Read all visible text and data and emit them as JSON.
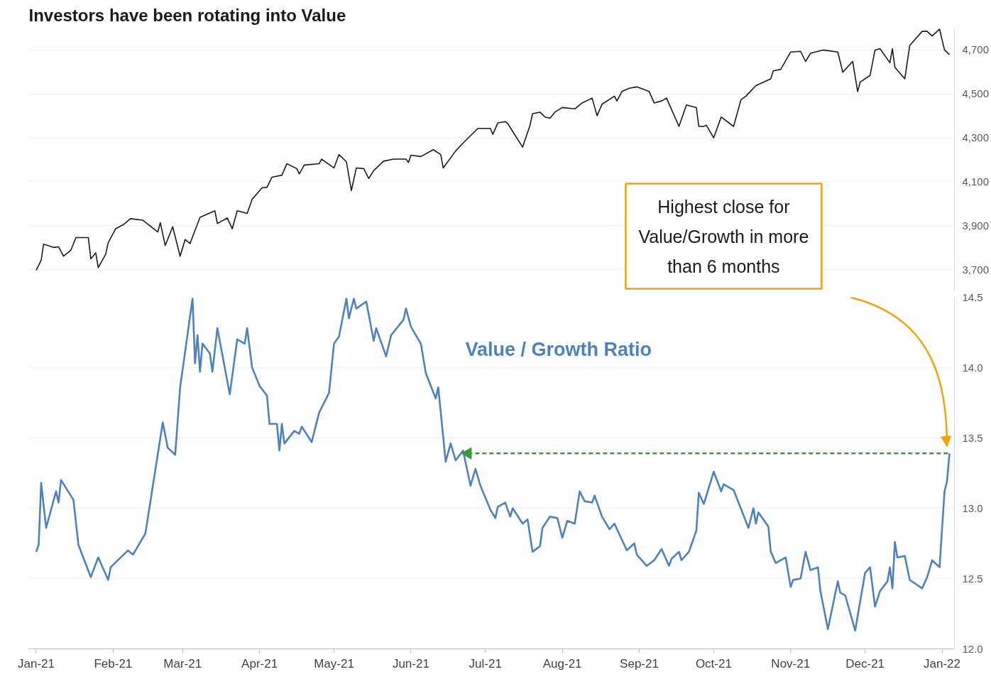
{
  "chart_data": [
    {
      "type": "line",
      "title": "Investors have been rotating into Value",
      "tick_labels": "y",
      "grid": "y",
      "xlim": [
        "2020-12-29",
        "2022-01-06"
      ],
      "ylim": [
        3600,
        4800
      ],
      "yticks": [
        {
          "value": 3700,
          "label": "3,700"
        },
        {
          "value": 3900,
          "label": "3,900"
        },
        {
          "value": 4100,
          "label": "4,100"
        },
        {
          "value": 4300,
          "label": "4,300"
        },
        {
          "value": 4500,
          "label": "4,500"
        },
        {
          "value": 4700,
          "label": "4,700"
        }
      ],
      "series": [
        {
          "color": "#1a1a1a",
          "x": [
            "2021-01-01",
            "2021-01-03",
            "2021-01-04",
            "2021-01-08",
            "2021-01-10",
            "2021-01-12",
            "2021-01-15",
            "2021-01-17",
            "2021-01-22",
            "2021-01-23",
            "2021-01-25",
            "2021-01-26",
            "2021-01-29",
            "2021-01-30",
            "2021-02-02",
            "2021-02-05",
            "2021-02-08",
            "2021-02-13",
            "2021-02-19",
            "2021-02-20",
            "2021-02-22",
            "2021-02-25",
            "2021-02-28",
            "2021-03-02",
            "2021-03-04",
            "2021-03-08",
            "2021-03-14",
            "2021-03-15",
            "2021-03-19",
            "2021-03-21",
            "2021-03-23",
            "2021-03-27",
            "2021-03-29",
            "2021-04-02",
            "2021-04-04",
            "2021-04-06",
            "2021-04-10",
            "2021-04-12",
            "2021-04-16",
            "2021-04-17",
            "2021-04-19",
            "2021-04-25",
            "2021-04-26",
            "2021-05-01",
            "2021-05-03",
            "2021-05-06",
            "2021-05-08",
            "2021-05-10",
            "2021-05-13",
            "2021-05-15",
            "2021-05-17",
            "2021-05-21",
            "2021-05-25",
            "2021-05-30",
            "2021-05-31",
            "2021-06-01",
            "2021-06-05",
            "2021-06-10",
            "2021-06-13",
            "2021-06-14",
            "2021-06-19",
            "2021-06-22",
            "2021-06-28",
            "2021-07-03",
            "2021-07-04",
            "2021-07-06",
            "2021-07-09",
            "2021-07-10",
            "2021-07-16",
            "2021-07-19",
            "2021-07-20",
            "2021-07-23",
            "2021-07-25",
            "2021-07-27",
            "2021-07-29",
            "2021-08-01",
            "2021-08-06",
            "2021-08-09",
            "2021-08-13",
            "2021-08-15",
            "2021-08-17",
            "2021-08-22",
            "2021-08-23",
            "2021-08-25",
            "2021-08-28",
            "2021-08-31",
            "2021-09-05",
            "2021-09-07",
            "2021-09-10",
            "2021-09-12",
            "2021-09-17",
            "2021-09-20",
            "2021-09-24",
            "2021-09-25",
            "2021-09-27",
            "2021-09-28",
            "2021-10-01",
            "2021-10-04",
            "2021-10-09",
            "2021-10-12",
            "2021-10-14",
            "2021-10-18",
            "2021-10-24",
            "2021-10-25",
            "2021-10-28",
            "2021-11-01",
            "2021-11-05",
            "2021-11-07",
            "2021-11-09",
            "2021-11-14",
            "2021-11-20",
            "2021-11-22",
            "2021-11-26",
            "2021-11-28",
            "2021-11-29",
            "2021-12-03",
            "2021-12-05",
            "2021-12-07",
            "2021-12-11",
            "2021-12-12",
            "2021-12-13",
            "2021-12-17",
            "2021-12-19",
            "2021-12-24",
            "2021-12-26",
            "2021-12-28",
            "2021-12-31",
            "2022-01-02",
            "2022-01-04"
          ],
          "values": [
            3697,
            3743,
            3816,
            3801,
            3804,
            3761,
            3789,
            3846,
            3846,
            3749,
            3776,
            3709,
            3770,
            3822,
            3886,
            3904,
            3932,
            3925,
            3871,
            3914,
            3810,
            3895,
            3761,
            3837,
            3819,
            3938,
            3968,
            3910,
            3935,
            3886,
            3968,
            3956,
            4020,
            4072,
            4075,
            4121,
            4130,
            4182,
            4160,
            4136,
            4176,
            4182,
            4203,
            4163,
            4224,
            4191,
            4060,
            4163,
            4160,
            4115,
            4151,
            4194,
            4203,
            4203,
            4188,
            4221,
            4215,
            4246,
            4224,
            4163,
            4240,
            4276,
            4343,
            4343,
            4316,
            4368,
            4374,
            4365,
            4258,
            4358,
            4410,
            4417,
            4395,
            4389,
            4417,
            4438,
            4432,
            4459,
            4481,
            4401,
            4453,
            4490,
            4468,
            4511,
            4526,
            4532,
            4511,
            4459,
            4468,
            4481,
            4352,
            4450,
            4438,
            4352,
            4352,
            4358,
            4300,
            4395,
            4352,
            4474,
            4490,
            4538,
            4569,
            4605,
            4612,
            4691,
            4694,
            4648,
            4685,
            4700,
            4691,
            4599,
            4648,
            4511,
            4554,
            4584,
            4700,
            4706,
            4642,
            4706,
            4621,
            4569,
            4721,
            4785,
            4785,
            4764,
            4795,
            4700,
            4679
          ]
        }
      ]
    },
    {
      "type": "line",
      "grid": "y",
      "xlim": [
        "2020-12-29",
        "2022-01-06"
      ],
      "ylim": [
        12.0,
        14.5
      ],
      "xticks": [
        {
          "value": "2021-01-01",
          "label": "Jan-21"
        },
        {
          "value": "2021-02-01",
          "label": "Feb-21"
        },
        {
          "value": "2021-03-01",
          "label": "Mar-21"
        },
        {
          "value": "2021-04-01",
          "label": "Apr-21"
        },
        {
          "value": "2021-05-01",
          "label": "May-21"
        },
        {
          "value": "2021-06-01",
          "label": "Jun-21"
        },
        {
          "value": "2021-07-01",
          "label": "Jul-21"
        },
        {
          "value": "2021-08-01",
          "label": "Aug-21"
        },
        {
          "value": "2021-09-01",
          "label": "Sep-21"
        },
        {
          "value": "2021-10-01",
          "label": "Oct-21"
        },
        {
          "value": "2021-11-01",
          "label": "Nov-21"
        },
        {
          "value": "2021-12-01",
          "label": "Dec-21"
        },
        {
          "value": "2022-01-01",
          "label": "Jan-22"
        }
      ],
      "yticks": [
        {
          "value": 12,
          "label": "12.0"
        },
        12.5,
        {
          "value": 13,
          "label": "13.0"
        },
        13.5,
        {
          "value": 14,
          "label": "14.0"
        },
        14.5
      ],
      "annotations": [
        "Highest close for\nValue/Growth in more\nthan 6 months"
      ],
      "series": [
        {
          "name": "Value / Growth Ratio",
          "color": "#4f81bd",
          "x": [
            "2021-01-01",
            "2021-01-02",
            "2021-01-03",
            "2021-01-05",
            "2021-01-09",
            "2021-01-10",
            "2021-01-11",
            "2021-01-16",
            "2021-01-18",
            "2021-01-23",
            "2021-01-26",
            "2021-01-30",
            "2021-01-31",
            "2021-02-07",
            "2021-02-09",
            "2021-02-14",
            "2021-02-21",
            "2021-02-23",
            "2021-02-26",
            "2021-02-28",
            "2021-03-05",
            "2021-03-06",
            "2021-03-07",
            "2021-03-08",
            "2021-03-09",
            "2021-03-12",
            "2021-03-13",
            "2021-03-15",
            "2021-03-20",
            "2021-03-23",
            "2021-03-26",
            "2021-03-27",
            "2021-03-29",
            "2021-04-01",
            "2021-04-04",
            "2021-04-05",
            "2021-04-08",
            "2021-04-09",
            "2021-04-10",
            "2021-04-11",
            "2021-04-15",
            "2021-04-17",
            "2021-04-18",
            "2021-04-22",
            "2021-04-25",
            "2021-04-29",
            "2021-05-01",
            "2021-05-03",
            "2021-05-06",
            "2021-05-07",
            "2021-05-09",
            "2021-05-10",
            "2021-05-14",
            "2021-05-17",
            "2021-05-18",
            "2021-05-22",
            "2021-05-24",
            "2021-05-29",
            "2021-05-30",
            "2021-06-01",
            "2021-06-05",
            "2021-06-07",
            "2021-06-11",
            "2021-06-12",
            "2021-06-15",
            "2021-06-17",
            "2021-06-19",
            "2021-06-22",
            "2021-06-25",
            "2021-06-27",
            "2021-06-29",
            "2021-07-03",
            "2021-07-05",
            "2021-07-06",
            "2021-07-09",
            "2021-07-11",
            "2021-07-12",
            "2021-07-16",
            "2021-07-18",
            "2021-07-20",
            "2021-07-23",
            "2021-07-24",
            "2021-07-27",
            "2021-07-30",
            "2021-08-01",
            "2021-08-03",
            "2021-08-06",
            "2021-08-08",
            "2021-08-10",
            "2021-08-13",
            "2021-08-14",
            "2021-08-17",
            "2021-08-20",
            "2021-08-22",
            "2021-08-27",
            "2021-08-30",
            "2021-08-31",
            "2021-09-04",
            "2021-09-07",
            "2021-09-10",
            "2021-09-13",
            "2021-09-14",
            "2021-09-17",
            "2021-09-18",
            "2021-09-21",
            "2021-09-24",
            "2021-09-25",
            "2021-09-27",
            "2021-10-01",
            "2021-10-04",
            "2021-10-05",
            "2021-10-09",
            "2021-10-11",
            "2021-10-15",
            "2021-10-17",
            "2021-10-18",
            "2021-10-19",
            "2021-10-23",
            "2021-10-24",
            "2021-10-26",
            "2021-10-30",
            "2021-11-01",
            "2021-11-02",
            "2021-11-05",
            "2021-11-07",
            "2021-11-09",
            "2021-11-12",
            "2021-11-13",
            "2021-11-16",
            "2021-11-20",
            "2021-11-21",
            "2021-11-23",
            "2021-11-27",
            "2021-12-01",
            "2021-12-03",
            "2021-12-05",
            "2021-12-07",
            "2021-12-10",
            "2021-12-11",
            "2021-12-12",
            "2021-12-13",
            "2021-12-14",
            "2021-12-17",
            "2021-12-19",
            "2021-12-24",
            "2021-12-26",
            "2021-12-28",
            "2021-12-31",
            "2022-01-02",
            "2022-01-03",
            "2022-01-04"
          ],
          "values": [
            12.69,
            12.74,
            13.18,
            12.86,
            13.12,
            13.04,
            13.2,
            13.06,
            12.74,
            12.51,
            12.65,
            12.49,
            12.58,
            12.7,
            12.67,
            12.82,
            13.61,
            13.43,
            13.38,
            13.86,
            14.49,
            14.03,
            14.23,
            13.97,
            14.17,
            14.1,
            13.97,
            14.28,
            13.81,
            14.2,
            14.17,
            14.28,
            14.0,
            13.87,
            13.8,
            13.6,
            13.6,
            13.41,
            13.6,
            13.46,
            13.55,
            13.53,
            13.58,
            13.47,
            13.68,
            13.82,
            14.17,
            14.22,
            14.49,
            14.35,
            14.49,
            14.42,
            14.47,
            14.19,
            14.28,
            14.08,
            14.23,
            14.34,
            14.42,
            14.29,
            14.17,
            13.96,
            13.78,
            13.86,
            13.33,
            13.46,
            13.34,
            13.41,
            13.16,
            13.28,
            13.16,
            12.99,
            12.93,
            13.01,
            13.04,
            12.94,
            13.0,
            12.89,
            12.92,
            12.69,
            12.73,
            12.86,
            12.94,
            12.93,
            12.79,
            12.91,
            12.89,
            13.12,
            13.05,
            13.04,
            13.09,
            12.94,
            12.85,
            12.89,
            12.7,
            12.75,
            12.67,
            12.59,
            12.63,
            12.71,
            12.59,
            12.64,
            12.69,
            12.63,
            12.69,
            12.84,
            13.11,
            13.03,
            13.26,
            13.12,
            13.17,
            13.13,
            13.04,
            12.86,
            13.0,
            12.89,
            12.97,
            12.87,
            12.69,
            12.61,
            12.65,
            12.44,
            12.49,
            12.5,
            12.69,
            12.56,
            12.58,
            12.41,
            12.14,
            12.48,
            12.4,
            12.38,
            12.13,
            12.54,
            12.58,
            12.3,
            12.41,
            12.48,
            12.58,
            12.43,
            12.76,
            12.65,
            12.66,
            12.49,
            12.43,
            12.51,
            12.63,
            12.58,
            13.12,
            13.19,
            13.39
          ]
        },
        {
          "type": "line",
          "color": "#3a9a3a",
          "line_style": "dashed",
          "x": [
            "2021-06-24",
            "2022-01-04"
          ],
          "values": [
            13.39,
            13.39
          ]
        }
      ]
    }
  ]
}
